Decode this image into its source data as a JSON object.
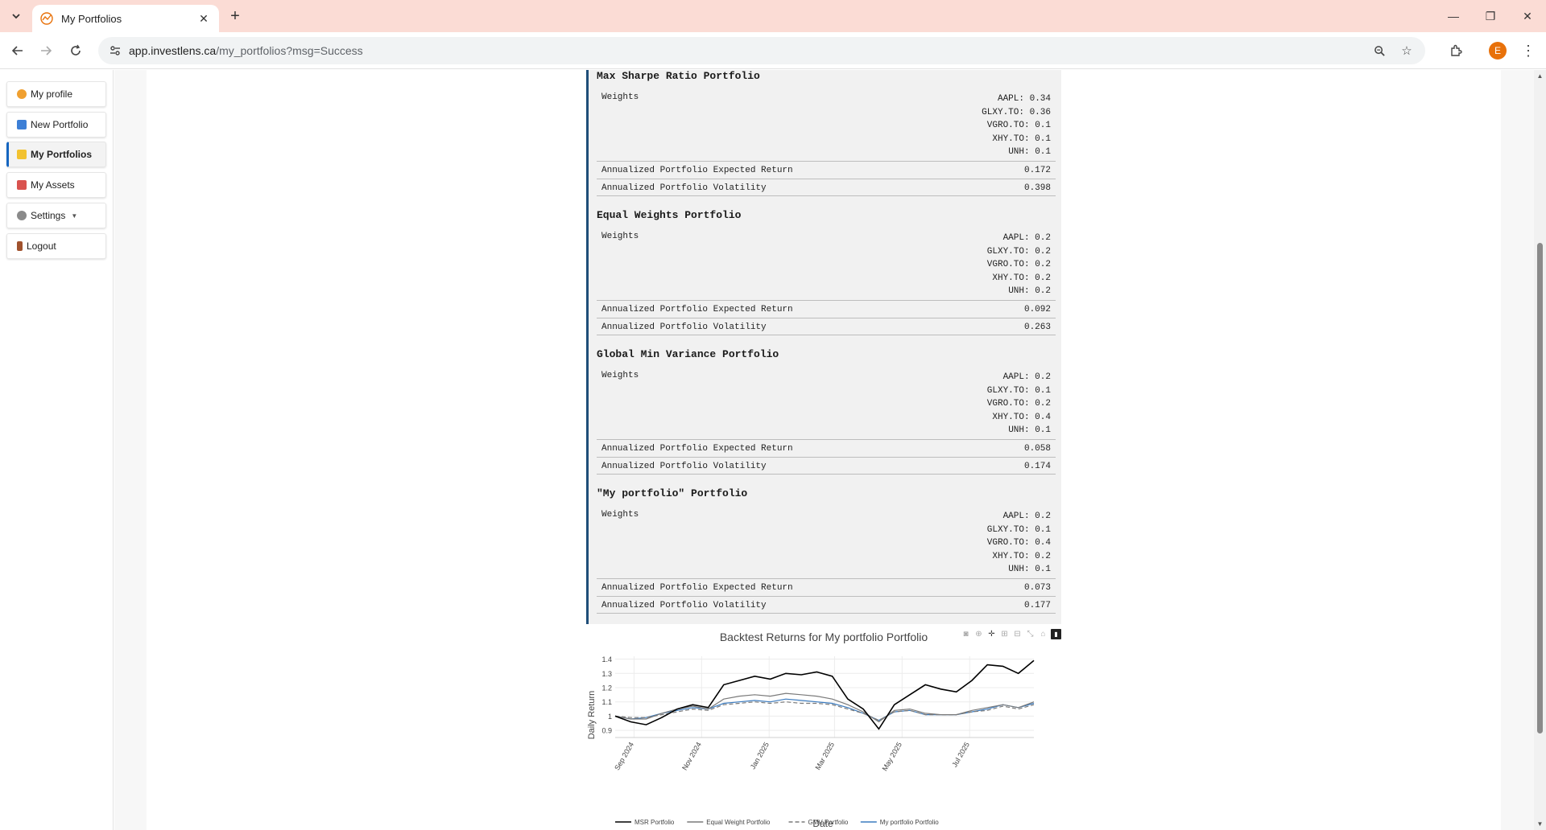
{
  "browser": {
    "tab_title": "My Portfolios",
    "url_host": "app.investlens.ca",
    "url_path": "/my_portfolios?msg=Success",
    "profile_initial": "E"
  },
  "sidebar": {
    "items": [
      {
        "label": "My profile",
        "icon": "person-icon",
        "color": "#f0a030"
      },
      {
        "label": "New Portfolio",
        "icon": "new-icon",
        "color": "#3d7fd6"
      },
      {
        "label": "My Portfolios",
        "icon": "folder-icon",
        "color": "#f2c230"
      },
      {
        "label": "My Assets",
        "icon": "books-icon",
        "color": "#d9534f"
      },
      {
        "label": "Settings",
        "icon": "gear-icon",
        "color": "#8a8a8a"
      },
      {
        "label": "Logout",
        "icon": "door-icon",
        "color": "#a0522d"
      }
    ]
  },
  "report": {
    "weights_label": "Weights",
    "return_label": "Annualized Portfolio Expected Return",
    "volatility_label": "Annualized Portfolio Volatility",
    "sections": [
      {
        "title": "Max Sharpe Ratio Portfolio",
        "weights": [
          "AAPL: 0.34",
          "GLXY.TO: 0.36",
          "VGRO.TO: 0.1",
          "XHY.TO: 0.1",
          "UNH: 0.1"
        ],
        "expected_return": "0.172",
        "volatility": "0.398"
      },
      {
        "title": "Equal Weights Portfolio",
        "weights": [
          "AAPL: 0.2",
          "GLXY.TO: 0.2",
          "VGRO.TO: 0.2",
          "XHY.TO: 0.2",
          "UNH: 0.2"
        ],
        "expected_return": "0.092",
        "volatility": "0.263"
      },
      {
        "title": "Global Min Variance Portfolio",
        "weights": [
          "AAPL: 0.2",
          "GLXY.TO: 0.1",
          "VGRO.TO: 0.2",
          "XHY.TO: 0.4",
          "UNH: 0.1"
        ],
        "expected_return": "0.058",
        "volatility": "0.174"
      },
      {
        "title": "\"My portfolio\" Portfolio",
        "weights": [
          "AAPL: 0.2",
          "GLXY.TO: 0.1",
          "VGRO.TO: 0.4",
          "XHY.TO: 0.2",
          "UNH: 0.1"
        ],
        "expected_return": "0.073",
        "volatility": "0.177"
      }
    ]
  },
  "chart_data": {
    "type": "line",
    "title": "Backtest Returns for My portfolio Portfolio",
    "xlabel": "Date",
    "ylabel": "Daily Return",
    "x_ticks": [
      "Sep 2024",
      "Nov 2024",
      "Jan 2025",
      "Mar 2025",
      "May 2025",
      "Jul 2025"
    ],
    "y_ticks": [
      0.9,
      1,
      1.1,
      1.2,
      1.3,
      1.4
    ],
    "ylim": [
      0.85,
      1.42
    ],
    "x": [
      "2024-08-15",
      "2024-08-29",
      "2024-09-12",
      "2024-09-26",
      "2024-10-10",
      "2024-10-24",
      "2024-11-07",
      "2024-11-21",
      "2024-12-05",
      "2024-12-19",
      "2025-01-02",
      "2025-01-16",
      "2025-01-30",
      "2025-02-13",
      "2025-02-27",
      "2025-03-13",
      "2025-03-27",
      "2025-04-10",
      "2025-04-24",
      "2025-05-08",
      "2025-05-22",
      "2025-06-05",
      "2025-06-19",
      "2025-07-03",
      "2025-07-17",
      "2025-07-31",
      "2025-08-14",
      "2025-08-28"
    ],
    "series": [
      {
        "name": "MSR Portfolio",
        "color": "#000000",
        "dash": "solid",
        "values": [
          1.0,
          0.96,
          0.94,
          0.99,
          1.05,
          1.08,
          1.06,
          1.22,
          1.25,
          1.28,
          1.26,
          1.3,
          1.29,
          1.31,
          1.28,
          1.12,
          1.05,
          0.91,
          1.08,
          1.15,
          1.22,
          1.19,
          1.17,
          1.25,
          1.36,
          1.35,
          1.3,
          1.39
        ]
      },
      {
        "name": "Equal Weight Portfolio",
        "color": "#7a7a7a",
        "dash": "solid",
        "values": [
          1.0,
          0.98,
          0.98,
          1.02,
          1.05,
          1.07,
          1.05,
          1.12,
          1.14,
          1.15,
          1.14,
          1.16,
          1.15,
          1.14,
          1.12,
          1.08,
          1.03,
          0.96,
          1.04,
          1.05,
          1.02,
          1.01,
          1.01,
          1.04,
          1.06,
          1.08,
          1.06,
          1.1
        ]
      },
      {
        "name": "GMV Portfolio",
        "color": "#7a7a7a",
        "dash": "dashed",
        "values": [
          1.0,
          0.99,
          0.99,
          1.01,
          1.03,
          1.05,
          1.04,
          1.08,
          1.09,
          1.1,
          1.09,
          1.1,
          1.09,
          1.09,
          1.08,
          1.05,
          1.02,
          0.97,
          1.03,
          1.04,
          1.01,
          1.01,
          1.01,
          1.03,
          1.04,
          1.07,
          1.05,
          1.08
        ]
      },
      {
        "name": "My portfolio Portfolio",
        "color": "#3b7bbf",
        "dash": "solid",
        "values": [
          1.0,
          0.98,
          0.99,
          1.02,
          1.04,
          1.06,
          1.05,
          1.09,
          1.1,
          1.11,
          1.1,
          1.12,
          1.11,
          1.1,
          1.09,
          1.06,
          1.02,
          0.97,
          1.03,
          1.04,
          1.01,
          1.01,
          1.01,
          1.03,
          1.05,
          1.08,
          1.06,
          1.09
        ]
      }
    ]
  }
}
